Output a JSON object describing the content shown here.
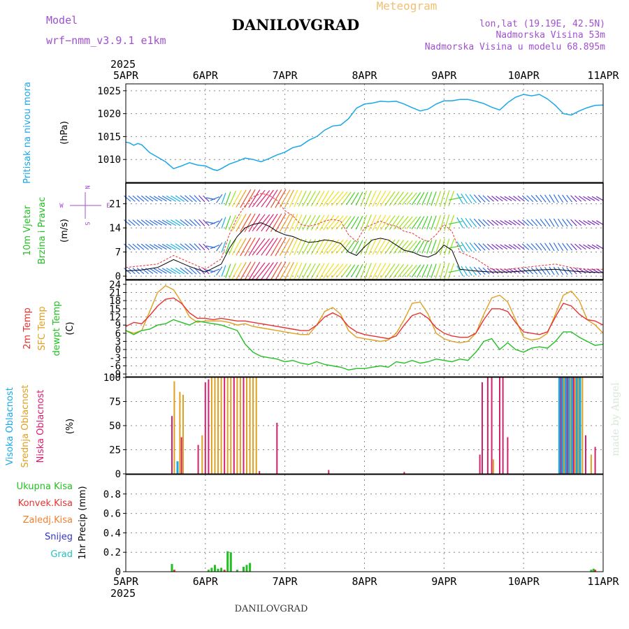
{
  "header": {
    "model_label": "Model",
    "model_name": "wrf−nmm_v3.9.1  e1km",
    "app_title": "Meteogram",
    "station_title": "DANILOVGRAD",
    "coords": "lon,lat (19.19E, 42.5N)",
    "elevation": "Nadmorska Visina 53m",
    "model_elevation": "Nadmorska Visina u modelu 68.895m",
    "year_top": "2025",
    "year_bottom": "2025",
    "footer_station": "DANILOVGRAD",
    "credit": "made by Angel"
  },
  "colors": {
    "pressure": "#1aa7e8",
    "temp2m": "#e8322e",
    "sfc_temp": "#e0a020",
    "dewpoint": "#22c022",
    "high_cloud": "#1aa7e8",
    "mid_cloud": "#e0a020",
    "low_cloud": "#d6206e",
    "total_precip": "#22c022",
    "conv_precip": "#e8322e",
    "frozen_precip": "#f08030",
    "snow": "#3333cc",
    "hail": "#22c0c0",
    "model_text": "#a050d0",
    "wind_ylabel": "#22c022"
  },
  "chart_data": [
    {
      "id": "pressure",
      "type": "line",
      "ylabel_main": "Pritisak na nivou mora",
      "ylabel_unit": "(hPa)",
      "x_ticks": [
        "5APR",
        "6APR",
        "7APR",
        "8APR",
        "9APR",
        "10APR",
        "11APR"
      ],
      "ylim": [
        1005,
        1026.5
      ],
      "yticks": [
        1010,
        1015,
        1020,
        1025
      ],
      "grid": true,
      "x_days": [
        0,
        0.05,
        0.1,
        0.15,
        0.2,
        0.3,
        0.4,
        0.5,
        0.6,
        0.7,
        0.8,
        0.9,
        1.0,
        1.1,
        1.15,
        1.2,
        1.3,
        1.4,
        1.5,
        1.6,
        1.7,
        1.8,
        1.9,
        2.0,
        2.1,
        2.2,
        2.3,
        2.4,
        2.5,
        2.6,
        2.7,
        2.8,
        2.9,
        3.0,
        3.1,
        3.2,
        3.3,
        3.4,
        3.5,
        3.6,
        3.7,
        3.8,
        3.9,
        4.0,
        4.1,
        4.2,
        4.3,
        4.4,
        4.5,
        4.6,
        4.7,
        4.8,
        4.9,
        5.0,
        5.1,
        5.2,
        5.3,
        5.4,
        5.5,
        5.6,
        5.7,
        5.8,
        5.9,
        6.0
      ],
      "values": [
        1013.8,
        1013.6,
        1013.1,
        1013.5,
        1013.2,
        1011.5,
        1010.5,
        1009.5,
        1008.0,
        1008.6,
        1009.3,
        1008.8,
        1008.6,
        1007.8,
        1007.6,
        1008.0,
        1009.0,
        1009.6,
        1010.3,
        1010.0,
        1009.5,
        1010.2,
        1011.0,
        1011.6,
        1012.6,
        1013.0,
        1014.2,
        1015.0,
        1016.4,
        1017.3,
        1017.5,
        1018.9,
        1021.2,
        1022.1,
        1022.3,
        1022.7,
        1022.6,
        1022.7,
        1022.1,
        1021.3,
        1020.6,
        1021.0,
        1022.1,
        1022.8,
        1022.8,
        1023.1,
        1023.1,
        1022.7,
        1022.2,
        1021.4,
        1020.8,
        1022.4,
        1023.6,
        1024.2,
        1023.9,
        1024.2,
        1023.2,
        1021.8,
        1020.0,
        1019.7,
        1020.6,
        1021.3,
        1021.8,
        1021.9
      ]
    },
    {
      "id": "wind",
      "type": "line",
      "ylabel_main": "10m Vjetar",
      "ylabel_sub": "Brzina i Pravac",
      "ylabel_unit": "(m/s)",
      "compass": {
        "n": "N",
        "s": "S",
        "e": "E",
        "w": "W"
      },
      "ylim": [
        -1,
        27
      ],
      "yticks": [
        0,
        7,
        14,
        21
      ],
      "grid": true,
      "x_days": [
        0,
        0.2,
        0.4,
        0.6,
        0.8,
        1.0,
        1.2,
        1.3,
        1.4,
        1.5,
        1.6,
        1.7,
        1.8,
        1.9,
        2.0,
        2.1,
        2.2,
        2.3,
        2.4,
        2.5,
        2.6,
        2.7,
        2.8,
        2.9,
        3.0,
        3.1,
        3.2,
        3.3,
        3.4,
        3.5,
        3.6,
        3.7,
        3.8,
        3.9,
        4.0,
        4.1,
        4.2,
        4.4,
        4.6,
        4.8,
        5.0,
        5.2,
        5.4,
        5.6,
        5.8,
        6.0
      ],
      "speed": [
        1.5,
        1.8,
        2.5,
        4.8,
        2.8,
        1.2,
        3.5,
        8.0,
        11.5,
        14.0,
        15.0,
        15.5,
        14.5,
        13.0,
        12.0,
        11.5,
        10.5,
        9.8,
        10.0,
        10.5,
        10.2,
        9.5,
        7.0,
        6.0,
        8.5,
        10.5,
        11.0,
        10.5,
        9.0,
        7.5,
        7.0,
        6.0,
        5.5,
        6.5,
        9.0,
        7.5,
        2.0,
        1.5,
        1.2,
        1.2,
        1.5,
        1.8,
        2.0,
        1.5,
        1.2,
        1.0
      ],
      "gust": [
        2.5,
        3.0,
        3.5,
        6.0,
        4.0,
        2.0,
        5.0,
        12.0,
        17.0,
        20.5,
        23.0,
        24.0,
        23.5,
        22.0,
        19.0,
        17.5,
        15.0,
        14.5,
        15.0,
        16.0,
        16.5,
        16.0,
        12.0,
        10.0,
        14.0,
        15.0,
        16.0,
        15.0,
        14.5,
        13.0,
        12.5,
        11.0,
        10.0,
        12.0,
        15.0,
        13.0,
        7.0,
        5.0,
        2.0,
        2.0,
        2.5,
        3.0,
        3.5,
        2.5,
        2.0,
        2.0
      ],
      "direction_deg": [
        310,
        310,
        300,
        300,
        310,
        320,
        200,
        200,
        210,
        210,
        210,
        220,
        215,
        210,
        210,
        205,
        205,
        210,
        210,
        210,
        220,
        220,
        215,
        210,
        200,
        205,
        210,
        215,
        215,
        220,
        220,
        210,
        200,
        200,
        195,
        200,
        330,
        320,
        310,
        300,
        310,
        320,
        330,
        320,
        300,
        300
      ]
    },
    {
      "id": "temperature",
      "type": "line",
      "ylabels": [
        "2m Temp",
        "SFC Temp",
        "dewpt Temp"
      ],
      "ylabel_unit": "(C)",
      "ylim": [
        -10,
        25.5
      ],
      "yticks": [
        -9,
        -6,
        -3,
        0,
        3,
        6,
        9,
        12,
        15,
        18,
        21,
        24
      ],
      "grid": true,
      "x_days": [
        0,
        0.1,
        0.2,
        0.3,
        0.4,
        0.5,
        0.6,
        0.7,
        0.8,
        0.9,
        1.0,
        1.1,
        1.2,
        1.3,
        1.4,
        1.5,
        1.6,
        1.7,
        1.8,
        1.9,
        2.0,
        2.1,
        2.2,
        2.3,
        2.4,
        2.5,
        2.6,
        2.7,
        2.8,
        2.9,
        3.0,
        3.1,
        3.2,
        3.3,
        3.4,
        3.5,
        3.6,
        3.7,
        3.8,
        3.9,
        4.0,
        4.1,
        4.2,
        4.3,
        4.4,
        4.5,
        4.6,
        4.7,
        4.8,
        4.9,
        5.0,
        5.1,
        5.2,
        5.3,
        5.4,
        5.5,
        5.6,
        5.7,
        5.8,
        5.9,
        6.0
      ],
      "series": [
        {
          "name": "2m Temp",
          "values": [
            8.5,
            10.0,
            9.5,
            12.5,
            16.0,
            18.5,
            19.0,
            17.0,
            13.5,
            11.5,
            11.5,
            11.0,
            11.5,
            11.0,
            10.5,
            10.5,
            10.0,
            9.5,
            9.0,
            8.5,
            8.0,
            7.5,
            7.0,
            7.0,
            9.0,
            12.0,
            13.5,
            12.0,
            8.5,
            6.5,
            5.5,
            5.0,
            4.5,
            4.0,
            5.0,
            9.0,
            12.5,
            13.5,
            11.5,
            8.0,
            6.0,
            5.0,
            4.5,
            4.5,
            6.0,
            11.0,
            15.0,
            15.0,
            14.0,
            10.0,
            6.5,
            6.0,
            5.5,
            6.5,
            12.0,
            17.0,
            16.0,
            13.0,
            11.0,
            10.5,
            9.0
          ]
        },
        {
          "name": "SFC Temp",
          "values": [
            7.0,
            6.0,
            7.0,
            14.0,
            21.0,
            23.5,
            22.0,
            17.5,
            12.0,
            10.0,
            10.5,
            10.5,
            10.5,
            10.0,
            9.0,
            9.5,
            8.5,
            8.0,
            7.5,
            7.0,
            6.5,
            6.0,
            5.5,
            5.5,
            9.0,
            14.0,
            15.5,
            13.0,
            7.0,
            4.5,
            4.0,
            3.5,
            3.0,
            3.5,
            6.0,
            11.0,
            17.0,
            17.5,
            13.0,
            6.0,
            4.0,
            3.0,
            2.5,
            3.0,
            6.0,
            13.0,
            19.0,
            20.0,
            17.5,
            11.0,
            4.5,
            3.5,
            4.0,
            6.0,
            13.0,
            20.0,
            21.5,
            18.0,
            11.0,
            9.0,
            6.0
          ]
        },
        {
          "name": "dewpt Temp",
          "values": [
            7.0,
            5.5,
            7.0,
            7.5,
            9.0,
            9.5,
            11.0,
            10.0,
            9.0,
            10.5,
            10.0,
            9.5,
            9.0,
            8.0,
            7.0,
            2.0,
            -1.0,
            -2.5,
            -3.0,
            -3.5,
            -4.5,
            -4.0,
            -5.0,
            -5.5,
            -4.5,
            -5.5,
            -6.0,
            -6.5,
            -7.5,
            -7.0,
            -7.0,
            -6.5,
            -6.0,
            -6.5,
            -4.5,
            -5.0,
            -4.0,
            -5.0,
            -4.5,
            -3.5,
            -4.0,
            -4.5,
            -3.5,
            -4.0,
            -1.0,
            3.0,
            4.0,
            0.0,
            2.5,
            0.0,
            -1.0,
            0.5,
            1.0,
            0.5,
            3.0,
            6.5,
            6.5,
            4.5,
            3.0,
            1.5,
            2.0
          ]
        }
      ]
    },
    {
      "id": "clouds",
      "type": "bar",
      "ylabels": [
        "Visoka Oblacnost",
        "Srednja Oblacnost",
        "Niska Oblacnost"
      ],
      "ylabel_unit": "(%)",
      "ylim": [
        0,
        100
      ],
      "yticks": [
        0,
        25,
        50,
        75,
        100
      ],
      "grid": true,
      "bars": [
        {
          "x": 0.58,
          "series": "low",
          "value": 60
        },
        {
          "x": 0.61,
          "series": "mid",
          "value": 96
        },
        {
          "x": 0.65,
          "series": "high",
          "value": 13
        },
        {
          "x": 0.68,
          "series": "mid",
          "value": 85
        },
        {
          "x": 0.7,
          "series": "low",
          "value": 38
        },
        {
          "x": 0.72,
          "series": "mid",
          "value": 82
        },
        {
          "x": 0.91,
          "series": "low",
          "value": 30
        },
        {
          "x": 0.96,
          "series": "mid",
          "value": 40
        },
        {
          "x": 1.0,
          "series": "low",
          "value": 95
        },
        {
          "x": 1.04,
          "series": "low",
          "value": 98
        },
        {
          "x": 1.08,
          "series": "mid",
          "value": 100
        },
        {
          "x": 1.12,
          "series": "mid",
          "value": 100
        },
        {
          "x": 1.16,
          "series": "mid",
          "value": 100
        },
        {
          "x": 1.2,
          "series": "mid",
          "value": 100
        },
        {
          "x": 1.24,
          "series": "low",
          "value": 100
        },
        {
          "x": 1.28,
          "series": "mid",
          "value": 100
        },
        {
          "x": 1.32,
          "series": "mid",
          "value": 100
        },
        {
          "x": 1.36,
          "series": "low",
          "value": 100
        },
        {
          "x": 1.4,
          "series": "mid",
          "value": 100
        },
        {
          "x": 1.44,
          "series": "mid",
          "value": 100
        },
        {
          "x": 1.48,
          "series": "low",
          "value": 100
        },
        {
          "x": 1.52,
          "series": "mid",
          "value": 100
        },
        {
          "x": 1.56,
          "series": "mid",
          "value": 100
        },
        {
          "x": 1.6,
          "series": "mid",
          "value": 100
        },
        {
          "x": 1.64,
          "series": "mid",
          "value": 100
        },
        {
          "x": 1.68,
          "series": "low",
          "value": 3
        },
        {
          "x": 1.9,
          "series": "low",
          "value": 53
        },
        {
          "x": 2.55,
          "series": "low",
          "value": 4
        },
        {
          "x": 3.5,
          "series": "low",
          "value": 2
        },
        {
          "x": 4.45,
          "series": "low",
          "value": 20
        },
        {
          "x": 4.48,
          "series": "low",
          "value": 95
        },
        {
          "x": 4.55,
          "series": "low",
          "value": 100
        },
        {
          "x": 4.6,
          "series": "low",
          "value": 100
        },
        {
          "x": 4.62,
          "series": "mid",
          "value": 15
        },
        {
          "x": 4.7,
          "series": "low",
          "value": 100
        },
        {
          "x": 4.74,
          "series": "low",
          "value": 100
        },
        {
          "x": 4.8,
          "series": "low",
          "value": 38
        },
        {
          "x": 5.45,
          "series": "high",
          "value": 100
        },
        {
          "x": 5.47,
          "series": "low",
          "value": 100
        },
        {
          "x": 5.49,
          "series": "high",
          "value": 100
        },
        {
          "x": 5.51,
          "series": "mid",
          "value": 100
        },
        {
          "x": 5.53,
          "series": "high",
          "value": 100
        },
        {
          "x": 5.55,
          "series": "low",
          "value": 100
        },
        {
          "x": 5.57,
          "series": "high",
          "value": 100
        },
        {
          "x": 5.59,
          "series": "mid",
          "value": 100
        },
        {
          "x": 5.61,
          "series": "high",
          "value": 100
        },
        {
          "x": 5.63,
          "series": "low",
          "value": 100
        },
        {
          "x": 5.65,
          "series": "mid",
          "value": 100
        },
        {
          "x": 5.67,
          "series": "high",
          "value": 100
        },
        {
          "x": 5.69,
          "series": "mid",
          "value": 100
        },
        {
          "x": 5.71,
          "series": "high",
          "value": 100
        },
        {
          "x": 5.74,
          "series": "mid",
          "value": 100
        },
        {
          "x": 5.78,
          "series": "low",
          "value": 40
        },
        {
          "x": 5.85,
          "series": "mid",
          "value": 20
        },
        {
          "x": 5.9,
          "series": "low",
          "value": 28
        }
      ]
    },
    {
      "id": "precip",
      "type": "bar",
      "legend": [
        "Ukupna Kisa",
        "Konvek.Kisa",
        "Zaledj.Kisa",
        "Snijeg",
        "Grad"
      ],
      "ylabel_unit": "1hr Precip (mm)",
      "ylim": [
        0,
        1.0
      ],
      "yticks": [
        0,
        0.2,
        0.4,
        0.6,
        0.8
      ],
      "grid": true,
      "bars": [
        {
          "x": 0.58,
          "series": "total",
          "value": 0.08
        },
        {
          "x": 0.61,
          "series": "conv",
          "value": 0.02
        },
        {
          "x": 1.04,
          "series": "total",
          "value": 0.02
        },
        {
          "x": 1.08,
          "series": "total",
          "value": 0.04
        },
        {
          "x": 1.12,
          "series": "total",
          "value": 0.07
        },
        {
          "x": 1.16,
          "series": "total",
          "value": 0.03
        },
        {
          "x": 1.2,
          "series": "total",
          "value": 0.04
        },
        {
          "x": 1.24,
          "series": "conv",
          "value": 0.02
        },
        {
          "x": 1.28,
          "series": "total",
          "value": 0.21
        },
        {
          "x": 1.32,
          "series": "total",
          "value": 0.2
        },
        {
          "x": 1.4,
          "series": "total",
          "value": 0.02
        },
        {
          "x": 1.48,
          "series": "total",
          "value": 0.05
        },
        {
          "x": 1.52,
          "series": "total",
          "value": 0.07
        },
        {
          "x": 1.56,
          "series": "total",
          "value": 0.09
        },
        {
          "x": 5.85,
          "series": "total",
          "value": 0.02
        },
        {
          "x": 5.88,
          "series": "total",
          "value": 0.03
        },
        {
          "x": 5.9,
          "series": "conv",
          "value": 0.02
        }
      ]
    }
  ]
}
